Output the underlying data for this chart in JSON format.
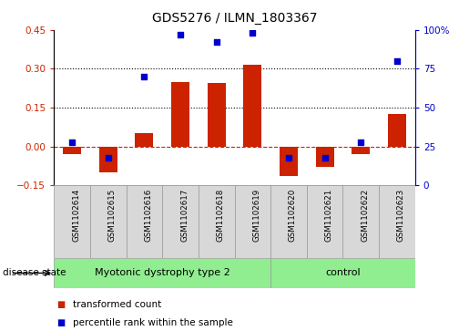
{
  "title": "GDS5276 / ILMN_1803367",
  "samples": [
    "GSM1102614",
    "GSM1102615",
    "GSM1102616",
    "GSM1102617",
    "GSM1102618",
    "GSM1102619",
    "GSM1102620",
    "GSM1102621",
    "GSM1102622",
    "GSM1102623"
  ],
  "transformed_count": [
    -0.03,
    -0.1,
    0.05,
    0.25,
    0.245,
    0.315,
    -0.115,
    -0.08,
    -0.03,
    0.125
  ],
  "percentile_rank": [
    28,
    18,
    70,
    97,
    92,
    98,
    18,
    18,
    28,
    80
  ],
  "disease_groups": [
    {
      "label": "Myotonic dystrophy type 2",
      "start": 0,
      "end": 6,
      "color": "#90ee90"
    },
    {
      "label": "control",
      "start": 6,
      "end": 10,
      "color": "#90ee90"
    }
  ],
  "left_color": "#cc2200",
  "right_color": "#0000cc",
  "bar_color": "#cc2200",
  "scatter_color": "#0000cc",
  "dotted_lines": [
    0.15,
    0.3
  ],
  "left_ylim": [
    -0.15,
    0.45
  ],
  "left_yticks": [
    -0.15,
    0.0,
    0.15,
    0.3,
    0.45
  ],
  "right_ylim": [
    0,
    100
  ],
  "right_yticks": [
    0,
    25,
    50,
    75,
    100
  ],
  "sample_box_color": "#d8d8d8",
  "legend": [
    {
      "label": "transformed count",
      "color": "#cc2200"
    },
    {
      "label": "percentile rank within the sample",
      "color": "#0000cc"
    }
  ]
}
